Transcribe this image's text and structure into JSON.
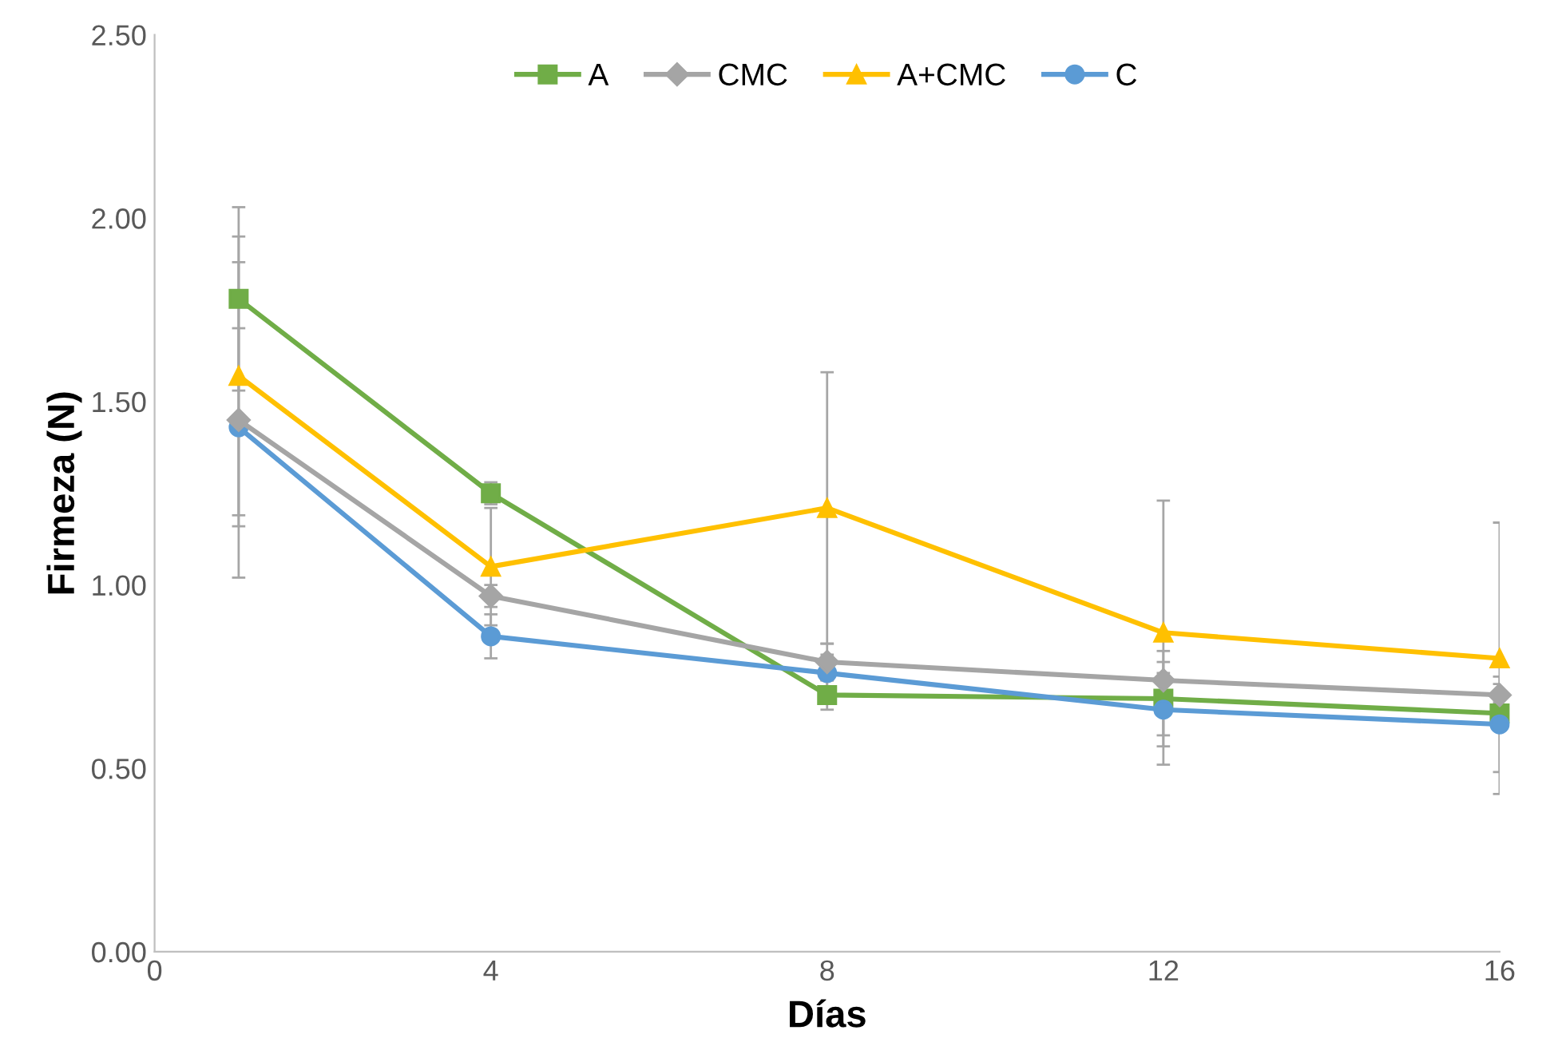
{
  "chart_data": {
    "type": "line",
    "xlabel": "Días",
    "ylabel": "Firmeza (N)",
    "x": [
      1,
      4,
      8,
      12,
      16
    ],
    "xlim": [
      0,
      16
    ],
    "xticks": [
      0,
      4,
      8,
      12,
      16
    ],
    "ylim": [
      0,
      2.5
    ],
    "yticks": [
      {
        "value": 0,
        "label": "0.00"
      },
      {
        "value": 0.5,
        "label": "0.50"
      },
      {
        "value": 1,
        "label": "1.00"
      },
      {
        "value": 1.5,
        "label": "1.50"
      },
      {
        "value": 2,
        "label": "2.00"
      },
      {
        "value": 2.5,
        "label": "2.50"
      }
    ],
    "grid": false,
    "legend": "top",
    "line_style": "solid",
    "series": [
      {
        "name": "A",
        "color": "#70ad47",
        "marker": "square",
        "values": [
          1.78,
          1.25,
          0.7,
          0.69,
          0.65
        ],
        "errors": [
          0.25,
          0.03,
          0.04,
          0.1,
          0.03
        ]
      },
      {
        "name": "CMC",
        "color": "#a5a5a5",
        "marker": "diamond",
        "values": [
          1.45,
          0.97,
          0.79,
          0.74,
          0.7
        ],
        "errors": [
          0.43,
          0.03,
          0.05,
          0.08,
          0.03
        ]
      },
      {
        "name": "A+CMC",
        "color": "#ffc000",
        "marker": "triangle",
        "values": [
          1.57,
          1.05,
          1.21,
          0.87,
          0.8
        ],
        "errors": [
          0.38,
          0.16,
          0.37,
          0.36,
          0.37
        ]
      },
      {
        "name": "C",
        "color": "#5b9bd5",
        "marker": "circle",
        "values": [
          1.43,
          0.86,
          0.76,
          0.66,
          0.62
        ],
        "errors": [
          0.27,
          0.06,
          0.05,
          0.1,
          0.13
        ]
      }
    ]
  }
}
